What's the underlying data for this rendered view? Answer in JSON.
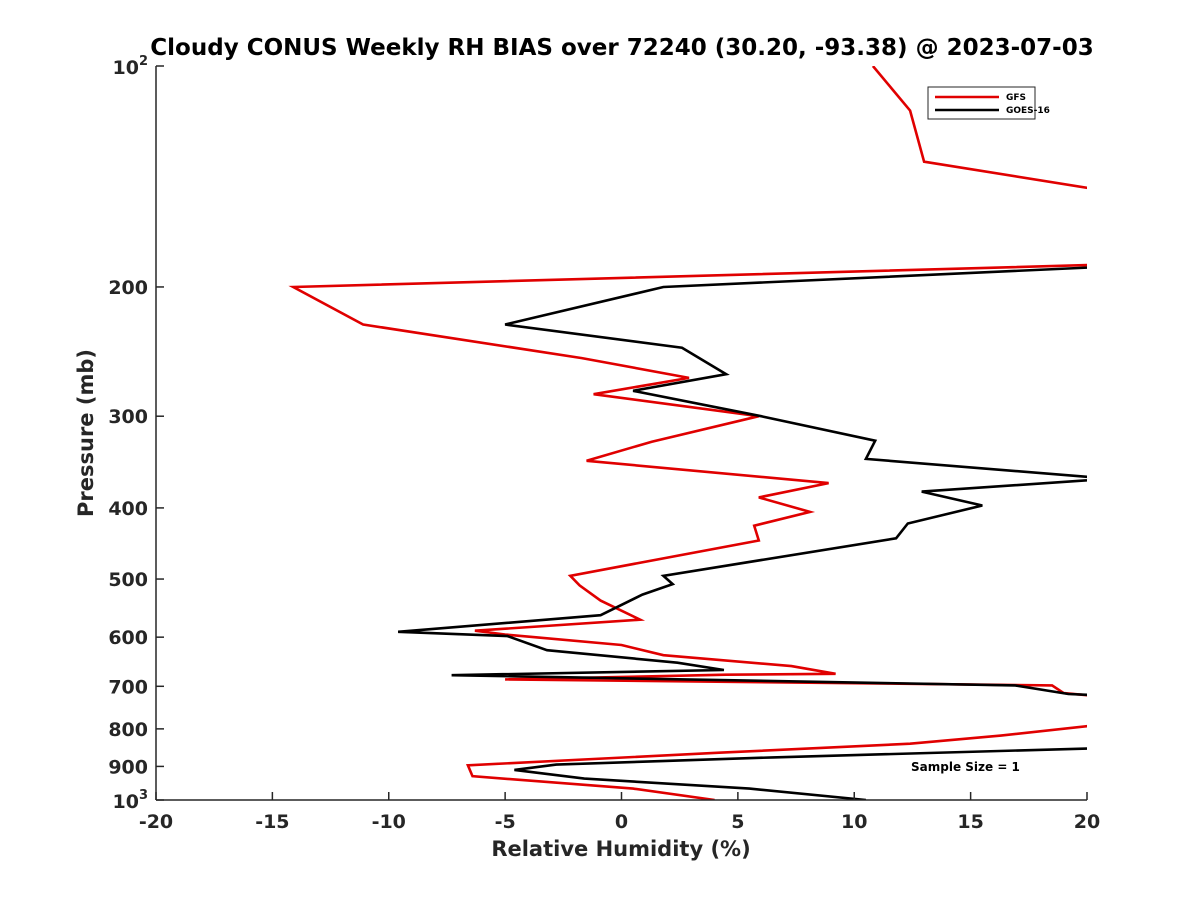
{
  "chart_data": {
    "type": "line",
    "title": "Cloudy CONUS Weekly RH BIAS over 72240 (30.20, -93.38) @ 2023-07-03",
    "xlabel": "Relative Humidity (%)",
    "ylabel": "Pressure (mb)",
    "xlim": [
      -20,
      20
    ],
    "ylim": [
      100,
      1000
    ],
    "yscale": "log",
    "y_reversed": true,
    "xticks": [
      -20,
      -15,
      -10,
      -5,
      0,
      5,
      10,
      15,
      20
    ],
    "xtick_labels": [
      "-20",
      "-15",
      "-10",
      "-5",
      "0",
      "5",
      "10",
      "15",
      "20"
    ],
    "yticks": [
      200,
      300,
      400,
      500,
      600,
      700,
      800,
      900
    ],
    "ytick_labels": [
      "200",
      "300",
      "400",
      "500",
      "600",
      "700",
      "800",
      "900"
    ],
    "ytick_top": {
      "base": "10",
      "exp": "2"
    },
    "ytick_bottom": {
      "base": "10",
      "exp": "3"
    },
    "legend_position": "top-right",
    "annotation": "Sample Size = 1",
    "series": [
      {
        "name": "GFS",
        "color": "#e00000",
        "points": [
          [
            10.8,
            100
          ],
          [
            12.4,
            115
          ],
          [
            13.0,
            135
          ],
          [
            22.0,
            150
          ],
          [
            22.0,
            186
          ],
          [
            -14.1,
            200
          ],
          [
            -11.1,
            225
          ],
          [
            -1.7,
            250
          ],
          [
            2.9,
            266
          ],
          [
            -1.2,
            280
          ],
          [
            5.9,
            300
          ],
          [
            1.3,
            325
          ],
          [
            -1.5,
            345
          ],
          [
            8.9,
            370
          ],
          [
            5.9,
            387
          ],
          [
            8.1,
            405
          ],
          [
            5.7,
            423
          ],
          [
            5.9,
            443
          ],
          [
            -2.2,
            495
          ],
          [
            -1.8,
            510
          ],
          [
            -0.9,
            535
          ],
          [
            0.8,
            568
          ],
          [
            -6.3,
            588
          ],
          [
            -5.0,
            595
          ],
          [
            0.0,
            615
          ],
          [
            1.8,
            635
          ],
          [
            7.3,
            657
          ],
          [
            9.2,
            673
          ],
          [
            4.5,
            675
          ],
          [
            -5.0,
            685
          ],
          [
            18.5,
            698
          ],
          [
            19.0,
            715
          ],
          [
            20.5,
            722
          ],
          [
            20.5,
            790
          ],
          [
            16.3,
            817
          ],
          [
            12.4,
            838
          ],
          [
            4.2,
            862
          ],
          [
            -6.6,
            897
          ],
          [
            -6.4,
            928
          ],
          [
            0.5,
            965
          ],
          [
            4.0,
            1000
          ]
        ]
      },
      {
        "name": "GOES-16",
        "color": "#000000",
        "points": [
          [
            22.0,
            187
          ],
          [
            1.8,
            200
          ],
          [
            -5.0,
            225
          ],
          [
            2.6,
            242
          ],
          [
            4.5,
            263
          ],
          [
            0.5,
            277
          ],
          [
            6.0,
            300
          ],
          [
            10.9,
            324
          ],
          [
            10.5,
            343
          ],
          [
            21.0,
            365
          ],
          [
            12.9,
            380
          ],
          [
            15.5,
            397
          ],
          [
            12.3,
            420
          ],
          [
            11.8,
            440
          ],
          [
            1.8,
            495
          ],
          [
            2.2,
            508
          ],
          [
            0.9,
            525
          ],
          [
            -0.9,
            560
          ],
          [
            -9.6,
            590
          ],
          [
            -4.9,
            598
          ],
          [
            -3.2,
            625
          ],
          [
            2.4,
            650
          ],
          [
            4.4,
            665
          ],
          [
            -7.3,
            676
          ],
          [
            16.9,
            698
          ],
          [
            19.2,
            717
          ],
          [
            20.5,
            720
          ],
          [
            20.5,
            850
          ],
          [
            6.5,
            875
          ],
          [
            -2.8,
            895
          ],
          [
            -4.6,
            910
          ],
          [
            -1.6,
            935
          ],
          [
            5.5,
            965
          ],
          [
            10.5,
            1000
          ]
        ]
      }
    ]
  }
}
